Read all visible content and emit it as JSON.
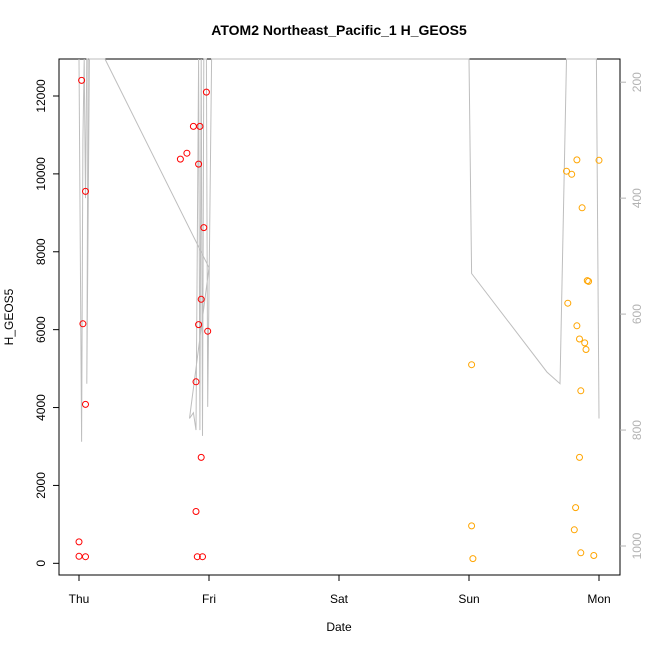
{
  "chart_data": {
    "type": "scatter",
    "title": "ATOM2 Northeast_Pacific_1 H_GEOS5",
    "xlabel": "Date",
    "ylabel": "H_GEOS5",
    "x_ticks": [
      "Thu",
      "Fri",
      "Sat",
      "Sun",
      "Mon"
    ],
    "y_ticks": [
      "0",
      "2000",
      "4000",
      "6000",
      "8000",
      "10000",
      "12000"
    ],
    "y2_ticks": [
      "200",
      "400",
      "600",
      "800",
      "1000"
    ],
    "ylim": [
      -300,
      12950
    ],
    "y2lim": [
      1050,
      160
    ],
    "colors": {
      "series_a": "#ff0000",
      "series_b": "#ffa500",
      "line": "#bebebe",
      "right_axis": "#b3b3b3"
    },
    "series": [
      {
        "color": "red",
        "points": [
          [
            0.02,
            12400
          ],
          [
            0.05,
            9550
          ],
          [
            0.03,
            6150
          ],
          [
            0.05,
            4080
          ],
          [
            0.0,
            550
          ],
          [
            0.0,
            180
          ],
          [
            0.05,
            170
          ],
          [
            0.78,
            10380
          ],
          [
            0.83,
            10530
          ],
          [
            0.88,
            11220
          ],
          [
            0.93,
            11220
          ],
          [
            0.98,
            12100
          ],
          [
            0.92,
            10250
          ],
          [
            0.96,
            8620
          ],
          [
            0.94,
            6780
          ],
          [
            0.92,
            6130
          ],
          [
            0.99,
            5960
          ],
          [
            0.9,
            4660
          ],
          [
            0.94,
            2720
          ],
          [
            0.9,
            1330
          ],
          [
            0.91,
            170
          ],
          [
            0.95,
            170
          ]
        ]
      },
      {
        "color": "orange",
        "points": [
          [
            3.02,
            5100
          ],
          [
            3.02,
            960
          ],
          [
            3.03,
            120
          ],
          [
            3.75,
            10070
          ],
          [
            3.79,
            9990
          ],
          [
            3.83,
            10360
          ],
          [
            4.0,
            10350
          ],
          [
            3.87,
            9130
          ],
          [
            3.91,
            7260
          ],
          [
            3.92,
            7240
          ],
          [
            3.76,
            6680
          ],
          [
            3.83,
            6100
          ],
          [
            3.85,
            5760
          ],
          [
            3.89,
            5660
          ],
          [
            3.9,
            5490
          ],
          [
            3.86,
            4430
          ],
          [
            3.85,
            2720
          ],
          [
            3.82,
            1430
          ],
          [
            3.81,
            860
          ],
          [
            3.86,
            270
          ],
          [
            3.96,
            200
          ]
        ]
      }
    ],
    "line_series": {
      "x": [
        0.0,
        0.02,
        0.03,
        0.04,
        0.05,
        0.06,
        0.07,
        0.06,
        0.08,
        0.1,
        0.12,
        0.14,
        0.16,
        0.2,
        1.0,
        0.85,
        0.88,
        0.9,
        0.92,
        0.93,
        0.94,
        0.95,
        0.96,
        0.97,
        0.98,
        0.99,
        1.0,
        1.02,
        3.0,
        3.02,
        3.6,
        3.7,
        3.75,
        3.77,
        3.78,
        3.79,
        3.8,
        3.81,
        3.82,
        3.83,
        3.84,
        3.85,
        3.86,
        3.87,
        3.88,
        3.9,
        3.92,
        3.94,
        3.96,
        3.98,
        4.0
      ],
      "y2": [
        160,
        820,
        300,
        160,
        400,
        160,
        160,
        720,
        160,
        160,
        160,
        160,
        160,
        160,
        520,
        780,
        770,
        800,
        160,
        800,
        160,
        810,
        160,
        160,
        160,
        760,
        560,
        160,
        160,
        530,
        700,
        720,
        160,
        160,
        160,
        160,
        160,
        160,
        160,
        160,
        160,
        160,
        160,
        160,
        160,
        160,
        160,
        160,
        160,
        160,
        780
      ]
    }
  }
}
